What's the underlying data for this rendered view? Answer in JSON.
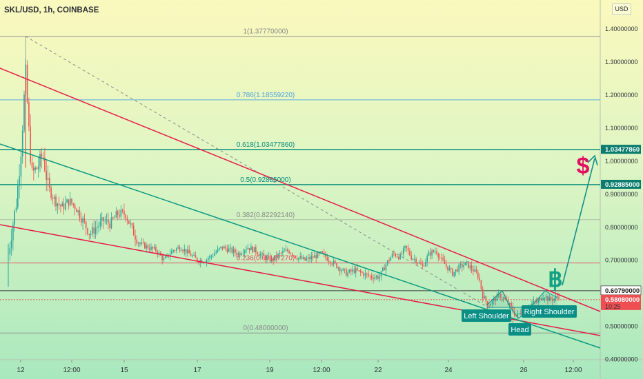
{
  "chart_data": {
    "type": "candlestick",
    "title": "SKL/USD, 1h, COINBASE",
    "currency_button": "USD",
    "y_ticks": [
      "1.40000000",
      "1.30000000",
      "1.20000000",
      "1.10000000",
      "1.00000000",
      "0.90000000",
      "0.80000000",
      "0.70000000",
      "0.50000000",
      "0.40000000"
    ],
    "ylim": [
      0.38,
      1.46
    ],
    "x_ticks": [
      "12",
      "12:00",
      "15",
      "17",
      "19",
      "12:00",
      "22",
      "24",
      "26",
      "12:00"
    ],
    "fibonacci": [
      {
        "label": "1(1.37770000)",
        "price": 1.3777
      },
      {
        "label": "0.786(1.18559220)",
        "price": 1.1856
      },
      {
        "label": "0.618(1.03477860)",
        "price": 1.0348
      },
      {
        "label": "0.5(0.92885000)",
        "price": 0.9289
      },
      {
        "label": "0.382(0.82292140)",
        "price": 0.8229
      },
      {
        "label": "0.236(0.69187270)",
        "price": 0.6919
      },
      {
        "label": "0(0.48000000)",
        "price": 0.48
      }
    ],
    "price_labels": [
      {
        "text": "1.03477860",
        "price": 1.0348
      },
      {
        "text": "0.92885000",
        "price": 0.9289
      },
      {
        "text": "0.60790000",
        "price": 0.6079
      },
      {
        "text": "0.58080000",
        "price": 0.5808,
        "sub": "10:25"
      }
    ],
    "annotations": [
      "Left Shoulder",
      "Head",
      "Right Shoulder"
    ],
    "symbols": {
      "dollar": "$",
      "bitcoin": "฿"
    },
    "colors": {
      "up": "#26a69a",
      "down": "#ef5350",
      "fib_blue": "#4aa3df",
      "fib_teal": "#008b7a",
      "fib_red": "#e84a5f",
      "fib_gray": "#8a8a8a",
      "trend_red": "#e51d48",
      "trend_teal": "#089981",
      "hs_box": "#0a8f87",
      "dollar": "#e0115f",
      "btc": "#16a085"
    }
  }
}
